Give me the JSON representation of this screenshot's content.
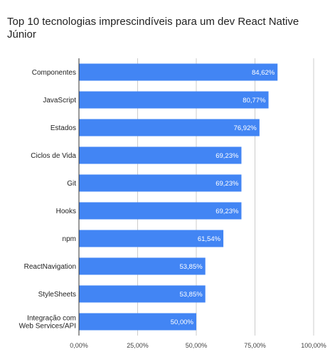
{
  "colors": {
    "bar": "#4285f4",
    "grid": "#cccccc",
    "axis": "#333333"
  },
  "chart_data": {
    "type": "bar",
    "orientation": "horizontal",
    "title": "Top 10 tecnologias imprescindíveis para um dev React Native Júnior",
    "categories": [
      "Componentes",
      "JavaScript",
      "Estados",
      "Ciclos de Vida",
      "Git",
      "Hooks",
      "npm",
      "ReactNavigation",
      "StyleSheets",
      "Integração com Web Services/API"
    ],
    "values": [
      84.62,
      80.77,
      76.92,
      69.23,
      69.23,
      69.23,
      61.54,
      53.85,
      53.85,
      50.0
    ],
    "value_labels": [
      "84,62%",
      "80,77%",
      "76,92%",
      "69,23%",
      "69,23%",
      "69,23%",
      "61,54%",
      "53,85%",
      "53,85%",
      "50,00%"
    ],
    "xlim": [
      0,
      100
    ],
    "x_ticks": [
      0,
      25,
      50,
      75,
      100
    ],
    "x_tick_labels": [
      "0,00%",
      "25,00%",
      "50,00%",
      "75,00%",
      "100,00%"
    ],
    "xlabel": "",
    "ylabel": "",
    "grid": true,
    "legend": "none"
  }
}
